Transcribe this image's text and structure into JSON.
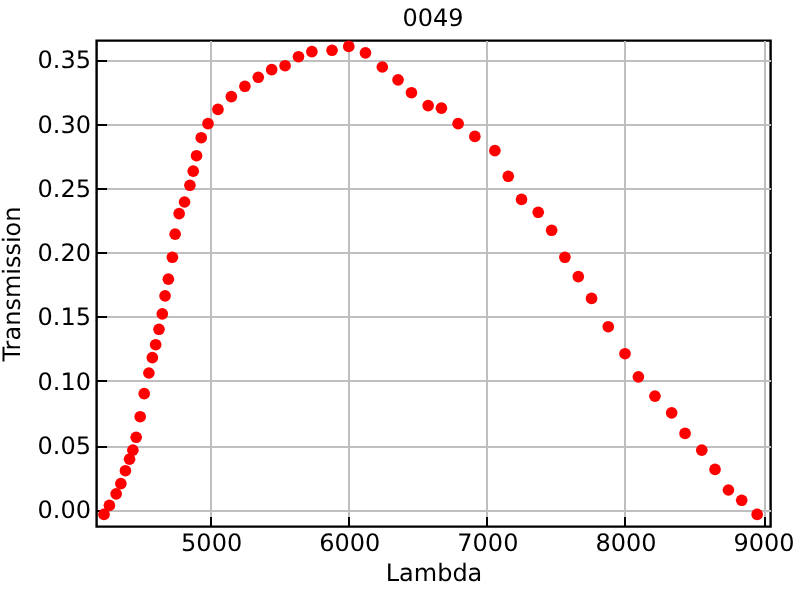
{
  "chart_data": {
    "type": "scatter",
    "title": "0049",
    "xlabel": "Lambda",
    "ylabel": "Transmission",
    "x": [
      4228,
      4267,
      4316,
      4350,
      4383,
      4413,
      4437,
      4461,
      4490,
      4519,
      4553,
      4578,
      4602,
      4626,
      4650,
      4670,
      4694,
      4723,
      4743,
      4772,
      4811,
      4850,
      4874,
      4898,
      4932,
      4981,
      5053,
      5150,
      5248,
      5345,
      5442,
      5539,
      5636,
      5733,
      5879,
      6000,
      6121,
      6243,
      6357,
      6454,
      6575,
      6671,
      6792,
      6913,
      7058,
      7155,
      7251,
      7372,
      7469,
      7565,
      7662,
      7758,
      7879,
      8000,
      8097,
      8217,
      8338,
      8435,
      8556,
      8652,
      8749,
      8845,
      8957
    ],
    "series": [
      {
        "color": "#ff0000",
        "values": [
          -0.004,
          0.003,
          0.012,
          0.02,
          0.03,
          0.039,
          0.046,
          0.056,
          0.072,
          0.09,
          0.106,
          0.118,
          0.128,
          0.14,
          0.152,
          0.166,
          0.179,
          0.196,
          0.214,
          0.23,
          0.239,
          0.252,
          0.263,
          0.275,
          0.289,
          0.3,
          0.311,
          0.321,
          0.329,
          0.336,
          0.342,
          0.345,
          0.352,
          0.356,
          0.357,
          0.36,
          0.355,
          0.344,
          0.334,
          0.324,
          0.314,
          0.312,
          0.3,
          0.29,
          0.279,
          0.259,
          0.241,
          0.231,
          0.217,
          0.196,
          0.181,
          0.164,
          0.142,
          0.121,
          0.103,
          0.088,
          0.075,
          0.059,
          0.046,
          0.031,
          0.015,
          0.007,
          -0.004
        ]
      }
    ],
    "xlim": [
      4170,
      9050
    ],
    "xticks": [
      5000,
      6000,
      7000,
      8000,
      9000
    ],
    "ylim": [
      -0.013,
      0.365
    ],
    "yticks": [
      {
        "value": 0,
        "label": "0.00"
      },
      {
        "value": 0.05,
        "label": "0.05"
      },
      {
        "value": 0.1,
        "label": "0.10"
      },
      {
        "value": 0.15,
        "label": "0.15"
      },
      {
        "value": 0.2,
        "label": "0.20"
      },
      {
        "value": 0.25,
        "label": "0.25"
      },
      {
        "value": 0.3,
        "label": "0.30"
      },
      {
        "value": 0.35,
        "label": "0.35"
      }
    ],
    "grid": true,
    "marker": "circle"
  }
}
